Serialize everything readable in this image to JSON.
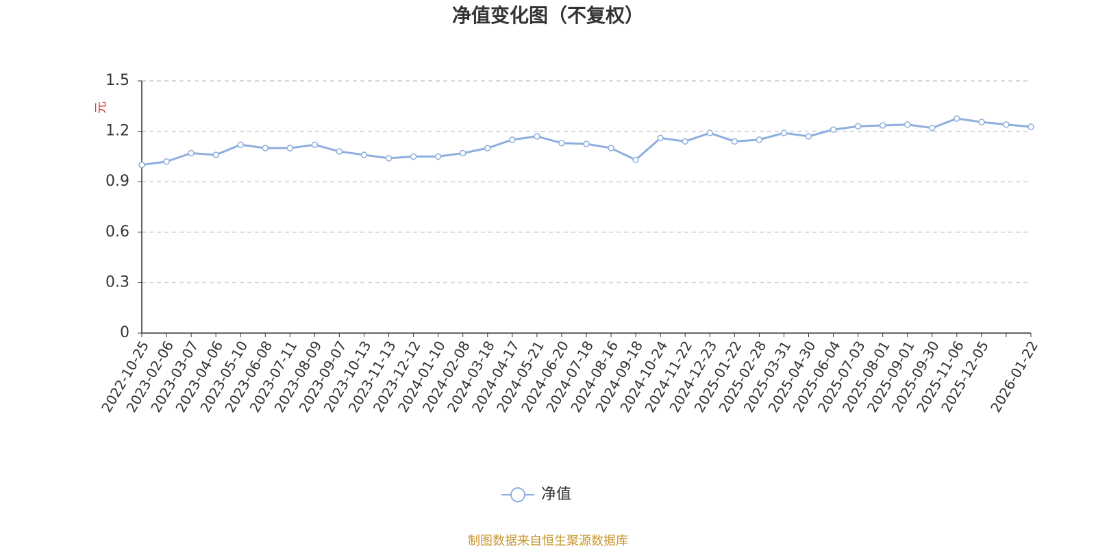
{
  "chart_data": {
    "type": "line",
    "title": "净值变化图（不复权）",
    "y_label": "元",
    "categories": [
      "2022-10-25",
      "2023-02-06",
      "2023-03-07",
      "2023-04-06",
      "2023-05-10",
      "2023-06-08",
      "2023-07-11",
      "2023-08-09",
      "2023-09-07",
      "2023-10-13",
      "2023-11-13",
      "2023-12-12",
      "2024-01-10",
      "2024-02-08",
      "2024-03-18",
      "2024-04-17",
      "2024-05-21",
      "2024-06-20",
      "2024-07-18",
      "2024-08-16",
      "2024-09-18",
      "2024-10-24",
      "2024-11-22",
      "2024-12-23",
      "2025-01-22",
      "2025-02-28",
      "2025-03-31",
      "2025-04-30",
      "2025-06-04",
      "2025-07-03",
      "2025-08-01",
      "2025-09-01",
      "2025-09-30",
      "2025-11-06",
      "2025-12-05",
      null,
      "2026-01-22"
    ],
    "series": [
      {
        "name": "净值",
        "color": "#8eaedd",
        "values": [
          1.0,
          1.02,
          1.07,
          1.06,
          1.12,
          1.1,
          1.1,
          1.12,
          1.08,
          1.06,
          1.04,
          1.05,
          1.05,
          1.07,
          1.1,
          1.15,
          1.17,
          1.13,
          1.125,
          1.1,
          1.03,
          1.16,
          1.14,
          1.19,
          1.14,
          1.15,
          1.19,
          1.17,
          1.21,
          1.23,
          1.235,
          1.24,
          1.22,
          1.276,
          1.255,
          1.24,
          1.227
        ]
      }
    ],
    "ylim": [
      0,
      1.5
    ],
    "yticks": [
      0,
      0.3,
      0.6,
      0.9,
      1.2,
      1.5
    ],
    "grid": true,
    "source": "制图数据来自恒生聚源数据库"
  }
}
